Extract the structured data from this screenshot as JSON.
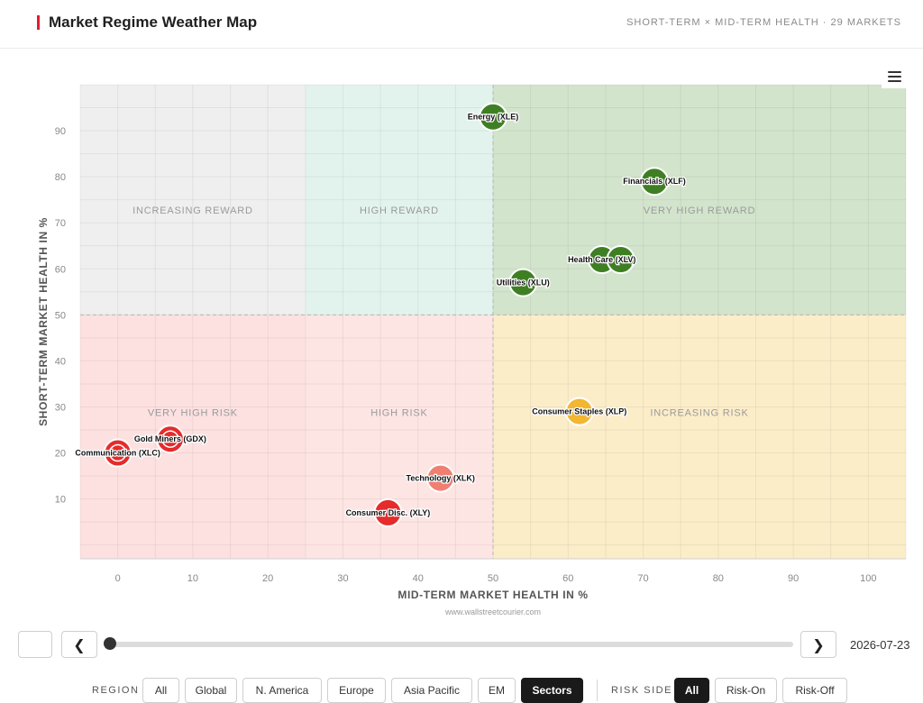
{
  "header": {
    "title": "Market Regime Weather Map",
    "subtitle": "SHORT-TERM × MID-TERM HEALTH · 29 MARKETS"
  },
  "chart_data": {
    "type": "scatter",
    "xlabel": "MID-TERM MARKET HEALTH IN %",
    "ylabel": "SHORT-TERM MARKET HEALTH IN %",
    "xlim": [
      -5,
      105
    ],
    "ylim": [
      -3,
      100
    ],
    "xticks": [
      0,
      10,
      20,
      30,
      40,
      50,
      60,
      70,
      80,
      90,
      100
    ],
    "yticks": [
      10,
      20,
      30,
      40,
      50,
      60,
      70,
      80,
      90
    ],
    "grid": true,
    "credit": "www.wallstreetcourier.com",
    "regions": [
      {
        "label": "INCREASING REWARD",
        "x0": -5,
        "x1": 25,
        "y0": 50,
        "y1": 100,
        "color": "#efefef"
      },
      {
        "label": "HIGH REWARD",
        "x0": 25,
        "x1": 50,
        "y0": 50,
        "y1": 100,
        "color": "#e2f3ed"
      },
      {
        "label": "VERY HIGH REWARD",
        "x0": 50,
        "x1": 105,
        "y0": 50,
        "y1": 100,
        "color": "#d3e4cd"
      },
      {
        "label": "VERY HIGH RISK",
        "x0": -5,
        "x1": 25,
        "y0": -3,
        "y1": 50,
        "color": "#fde1e1"
      },
      {
        "label": "HIGH RISK",
        "x0": 25,
        "x1": 50,
        "y0": -3,
        "y1": 50,
        "color": "#fde5e3"
      },
      {
        "label": "INCREASING RISK",
        "x0": 50,
        "x1": 105,
        "y0": -3,
        "y1": 50,
        "color": "#fcedc9"
      }
    ],
    "points": [
      {
        "label": "Energy (XLE)",
        "x": 50,
        "y": 93,
        "color": "#3f7f23"
      },
      {
        "label": "Financials (XLF)",
        "x": 71.5,
        "y": 79,
        "color": "#3f7f23"
      },
      {
        "label": "Health Care (XLV)",
        "x": 64.5,
        "y": 62,
        "color": "#3f7f23"
      },
      {
        "label": "",
        "x": 67,
        "y": 62,
        "color": "#3f7f23"
      },
      {
        "label": "Utilities (XLU)",
        "x": 54,
        "y": 57,
        "color": "#3f7f23"
      },
      {
        "label": "Consumer Staples (XLP)",
        "x": 61.5,
        "y": 29,
        "color": "#f2b630"
      },
      {
        "label": "Gold Miners (GDX)",
        "x": 7,
        "y": 23,
        "color": "#e52b2b"
      },
      {
        "label": "Communication (XLC)",
        "x": 0,
        "y": 20,
        "color": "#e52b2b"
      },
      {
        "label": "Technology (XLK)",
        "x": 43,
        "y": 14.5,
        "color": "#f07f72"
      },
      {
        "label": "Consumer Disc. (XLY)",
        "x": 36,
        "y": 7,
        "color": "#e52b2b"
      }
    ]
  },
  "controls": {
    "prev": "❮",
    "next": "❯",
    "date": "2026-07-23"
  },
  "filters": {
    "region_label": "REGION",
    "regions": [
      "All",
      "Global",
      "N. America",
      "Europe",
      "Asia Pacific",
      "EM",
      "Sectors"
    ],
    "region_active": "Sectors",
    "risk_label": "RISK SIDE",
    "risks": [
      "All",
      "Risk-On",
      "Risk-Off"
    ],
    "risk_active": "All"
  }
}
